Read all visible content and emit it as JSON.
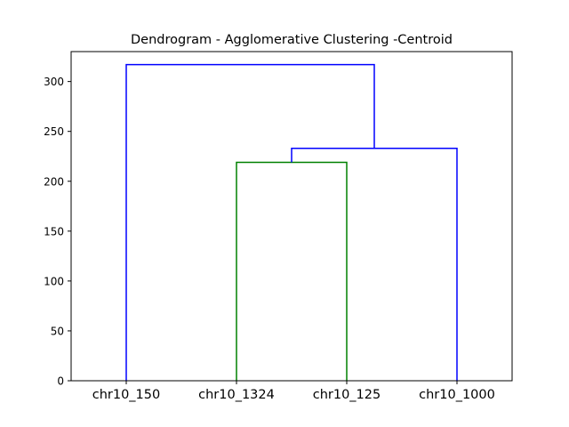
{
  "chart_data": {
    "type": "dendrogram",
    "title": "Dendrogram - Agglomerative Clustering -Centroid",
    "xlabel": "",
    "ylabel": "",
    "ylim": [
      0,
      330
    ],
    "yticks": [
      0,
      50,
      100,
      150,
      200,
      250,
      300
    ],
    "leaves": [
      "chr10_150",
      "chr10_1324",
      "chr10_125",
      "chr10_1000"
    ],
    "merges": [
      {
        "left": "chr10_1324",
        "right": "chr10_125",
        "height": 219,
        "color": "#008000"
      },
      {
        "left": "cluster_1",
        "right": "chr10_1000",
        "height": 233,
        "color": "#0000ff"
      },
      {
        "left": "chr10_150",
        "right": "cluster_2",
        "height": 317,
        "color": "#0000ff"
      }
    ],
    "grid": false,
    "legend": "none"
  }
}
